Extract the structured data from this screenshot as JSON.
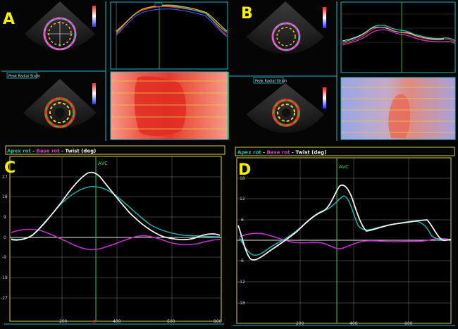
{
  "panel_letters": {
    "a": "A",
    "b": "B",
    "c": "C",
    "d": "D"
  },
  "strip_labels": {
    "a": "Peak Radial Strain",
    "b": "Peak Radial Strain"
  },
  "avc_label": "AVC",
  "c_legend": {
    "apex": "Apex rot",
    "sep1": " - ",
    "base": "Base rot",
    "sep2": " - ",
    "twist": "Twist (deg)"
  },
  "d_legend": {
    "apex": "Apex rot",
    "sep1": " - ",
    "base": "Base rot",
    "sep2": " - ",
    "twist": "Twist (deg)"
  },
  "c_yticks": [
    "27",
    "18",
    "9",
    "0",
    "-9",
    "-18",
    "-27"
  ],
  "c_xticks": [
    "200",
    "400",
    "600",
    "800"
  ],
  "d_yticks": [
    "18",
    "12",
    "6",
    "0",
    "-6",
    "-12",
    "-18"
  ],
  "d_xticks": [
    "200",
    "400",
    "600"
  ],
  "colors": {
    "teal": "#1fa9a1",
    "magenta": "#c02ec8",
    "white": "#f2f2f2",
    "frame": "#d8d042",
    "avc": "#2ea83c",
    "letter": "#f6f000"
  }
}
